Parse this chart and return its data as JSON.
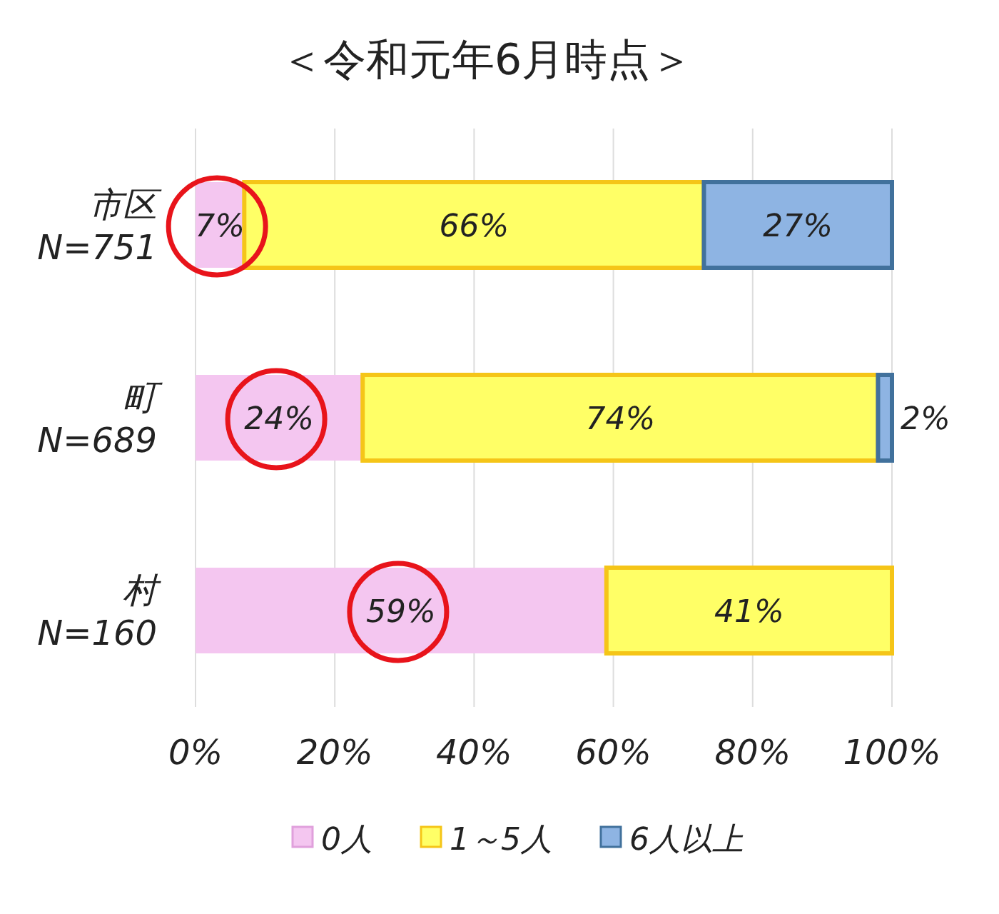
{
  "chart_data": {
    "type": "bar",
    "orientation": "horizontal",
    "stacked": true,
    "title": "＜令和元年6月時点＞",
    "categories": [
      "市区\nN=751",
      "町\nN=689",
      "村\nN=160"
    ],
    "series": [
      {
        "name": "0人",
        "color": "#f4c6f0",
        "values": [
          7,
          24,
          59
        ],
        "value_labels": [
          "7%",
          "24%",
          "59%"
        ]
      },
      {
        "name": "1～5人",
        "color": "#ffff66",
        "values": [
          66,
          74,
          41
        ],
        "value_labels": [
          "66%",
          "74%",
          "41%"
        ]
      },
      {
        "name": "6人以上",
        "color": "#8eb4e3",
        "values": [
          27,
          2,
          null
        ],
        "value_labels": [
          "27%",
          "2%",
          null
        ]
      }
    ],
    "xlim": [
      0,
      100
    ],
    "xticks": [
      {
        "value": 0,
        "label": "0%"
      },
      {
        "value": 20,
        "label": "20%"
      },
      {
        "value": 40,
        "label": "40%"
      },
      {
        "value": 60,
        "label": "60%"
      },
      {
        "value": 80,
        "label": "80%"
      },
      {
        "value": 100,
        "label": "100%"
      }
    ],
    "grid": "x",
    "legend": "bottom"
  }
}
